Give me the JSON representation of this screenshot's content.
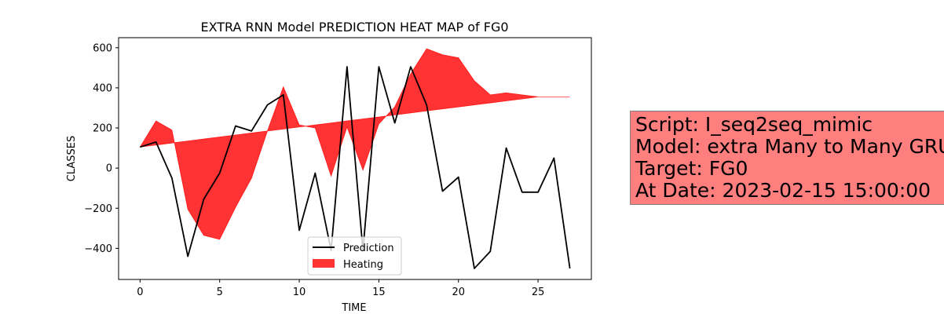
{
  "chart_data": {
    "type": "line",
    "title": "EXTRA RNN Model PREDICTION HEAT MAP of FG0",
    "xlabel": "TIME",
    "ylabel": "CLASSES",
    "xlim": [
      -1.35,
      28.35
    ],
    "ylim": [
      -555,
      650
    ],
    "xticks": [
      0,
      5,
      10,
      15,
      20,
      25
    ],
    "yticks": [
      -400,
      -200,
      0,
      200,
      400,
      600
    ],
    "grid": false,
    "legend_position": "bottom-center",
    "x": [
      0,
      1,
      2,
      3,
      4,
      5,
      6,
      7,
      8,
      9,
      10,
      11,
      12,
      13,
      14,
      15,
      16,
      17,
      18,
      19,
      20,
      21,
      22,
      23,
      24,
      25,
      26,
      27
    ],
    "series": [
      {
        "name": "Prediction",
        "type": "line",
        "color": "#000000",
        "values": [
          105,
          130,
          -50,
          -440,
          -155,
          -25,
          210,
          185,
          315,
          365,
          -310,
          -25,
          -410,
          505,
          -410,
          505,
          225,
          505,
          315,
          -115,
          -45,
          -500,
          -415,
          100,
          -120,
          -120,
          50,
          -500
        ]
      },
      {
        "name": "Heating",
        "type": "area",
        "color": "#ff0000",
        "alpha": 0.8,
        "baseline": [
          105,
          115,
          125,
          135,
          145,
          155,
          165,
          175,
          185,
          195,
          205,
          215,
          225,
          235,
          245,
          255,
          265,
          275,
          285,
          295,
          305,
          315,
          325,
          335,
          345,
          355,
          355,
          355
        ],
        "values": [
          105,
          235,
          190,
          -205,
          -335,
          -355,
          -195,
          -50,
          185,
          405,
          215,
          200,
          -40,
          205,
          -10,
          220,
          305,
          470,
          595,
          565,
          550,
          435,
          365,
          375,
          365,
          355,
          355,
          355
        ]
      }
    ]
  },
  "info_box": {
    "script": "Script: I_seq2seq_mimic",
    "model": "Model: extra Many to Many GRU",
    "target": "Target: FG0",
    "date": "At Date: 2023-02-15 15:00:00",
    "background": "#ff7f7f"
  },
  "colors": {
    "prediction": "#000000",
    "heating": "#ff0000"
  }
}
